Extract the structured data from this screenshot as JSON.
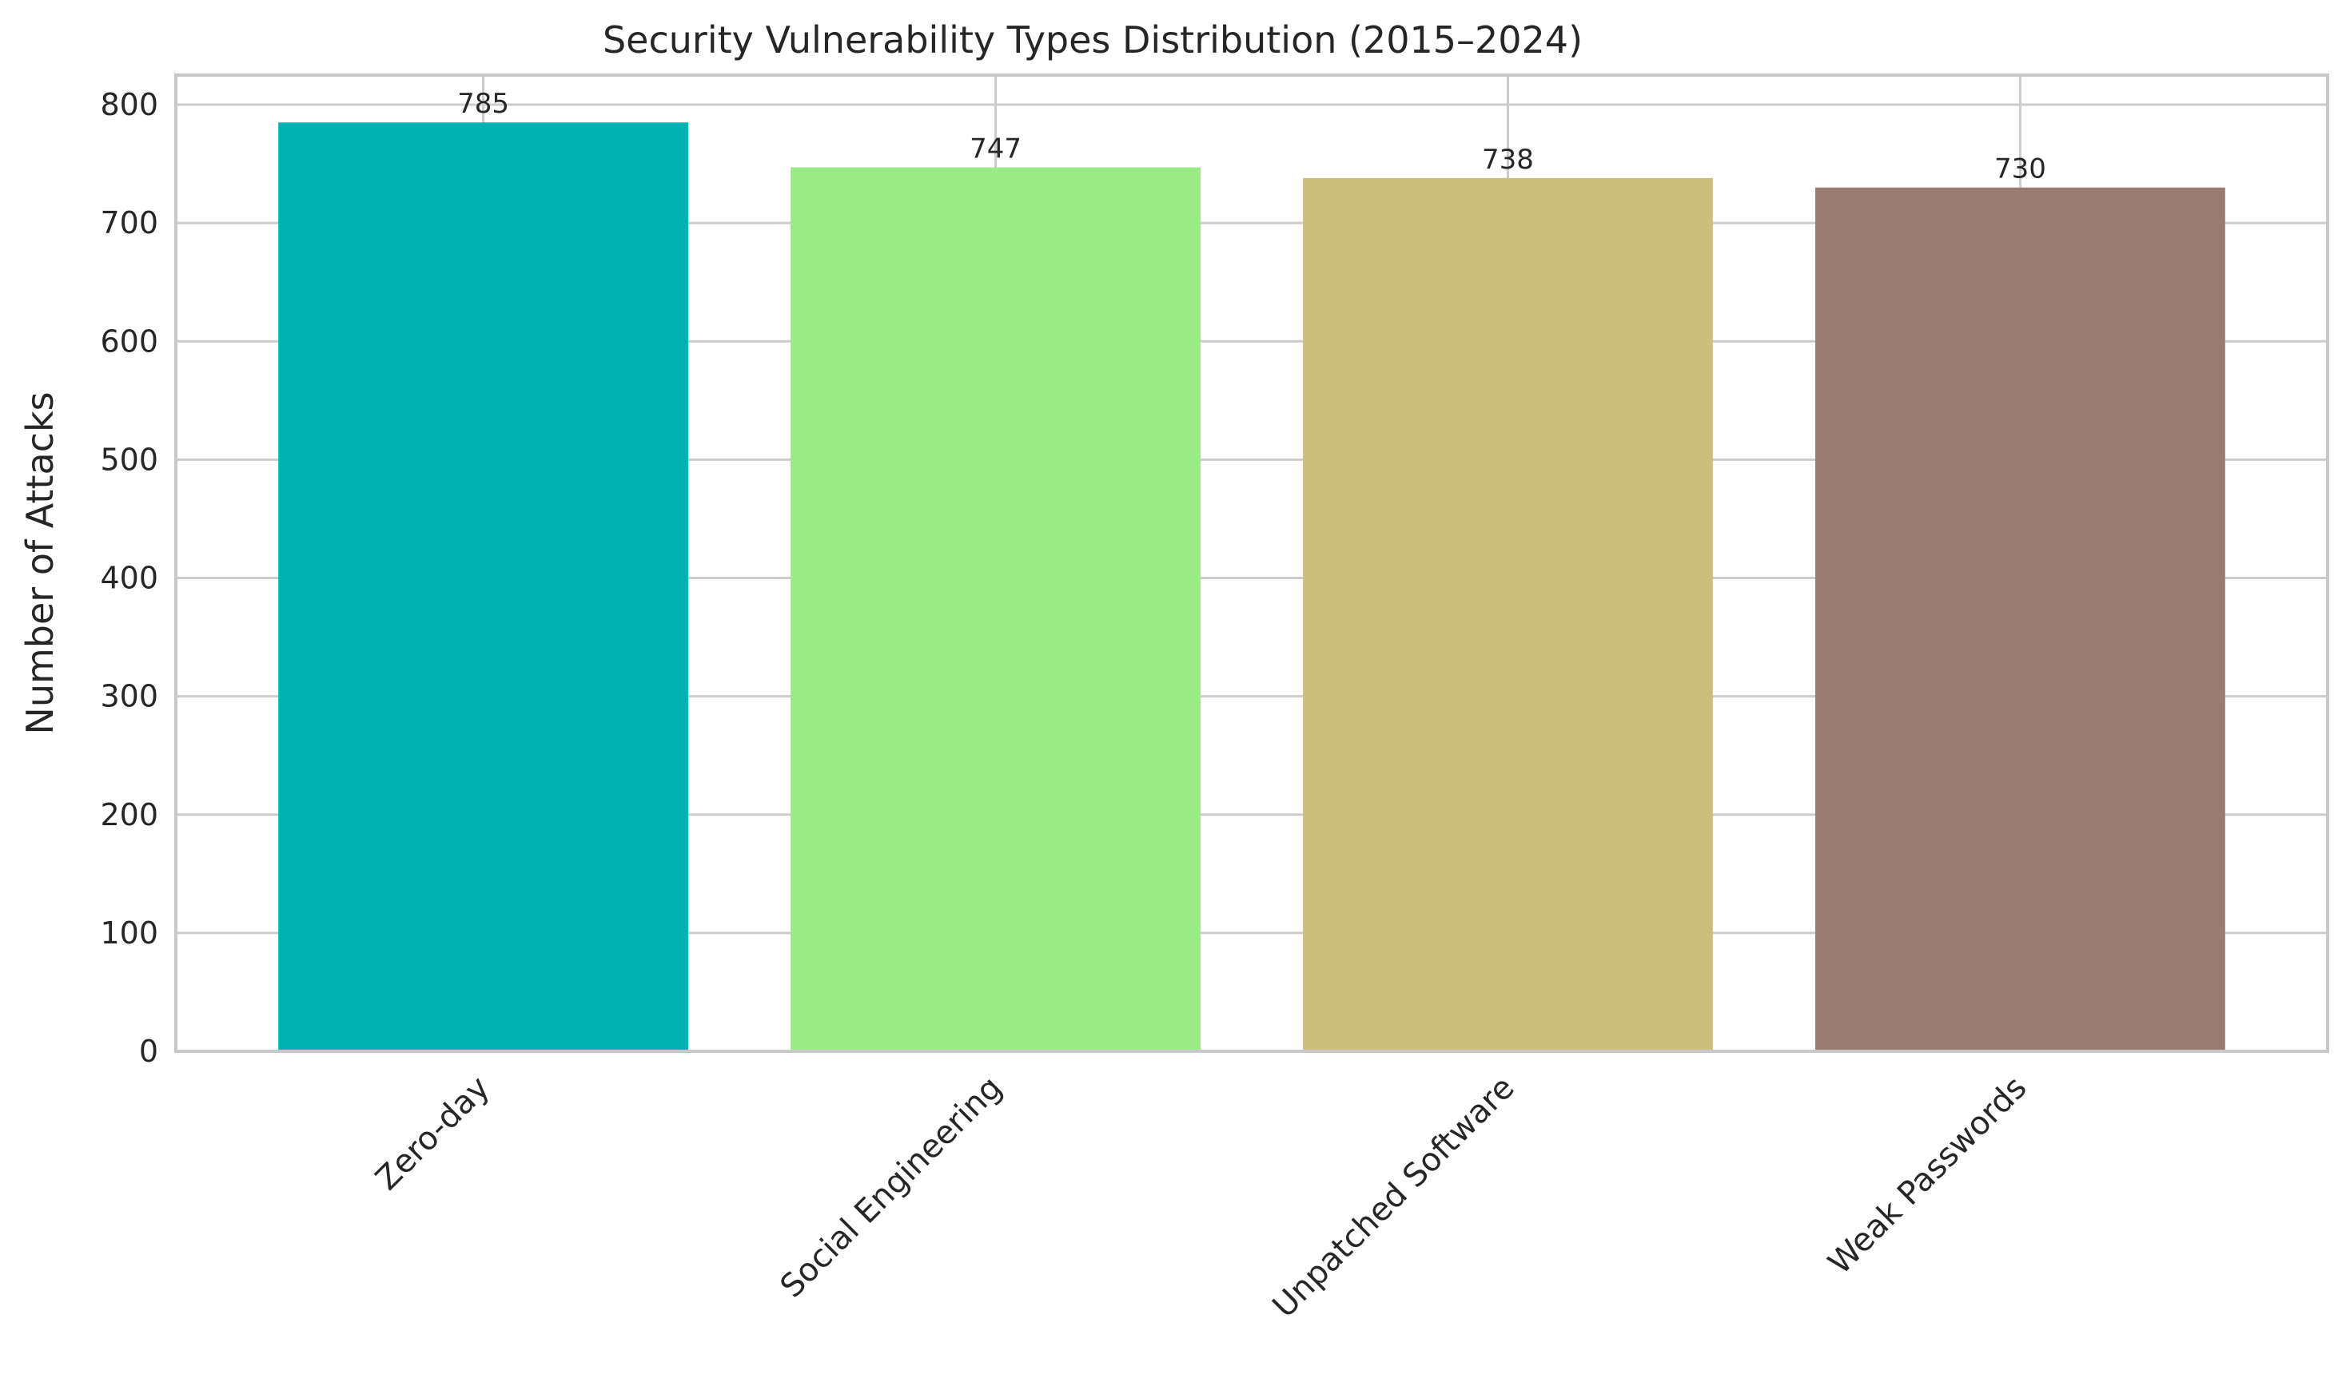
{
  "chart_data": {
    "type": "bar",
    "title": "Security Vulnerability Types Distribution (2015–2024)",
    "xlabel": "",
    "ylabel": "Number of Attacks",
    "categories": [
      "Zero-day",
      "Social Engineering",
      "Unpatched Software",
      "Weak Passwords"
    ],
    "values": [
      785,
      747,
      738,
      730
    ],
    "data_labels": [
      "785",
      "747",
      "738",
      "730"
    ],
    "colors": [
      "#00b2b2",
      "#9aeb85",
      "#ccbf7e",
      "#9a7b74"
    ],
    "ylim": [
      0,
      825
    ],
    "yticks": [
      0,
      100,
      200,
      300,
      400,
      500,
      600,
      700,
      800
    ],
    "grid": true,
    "legend": "none"
  }
}
